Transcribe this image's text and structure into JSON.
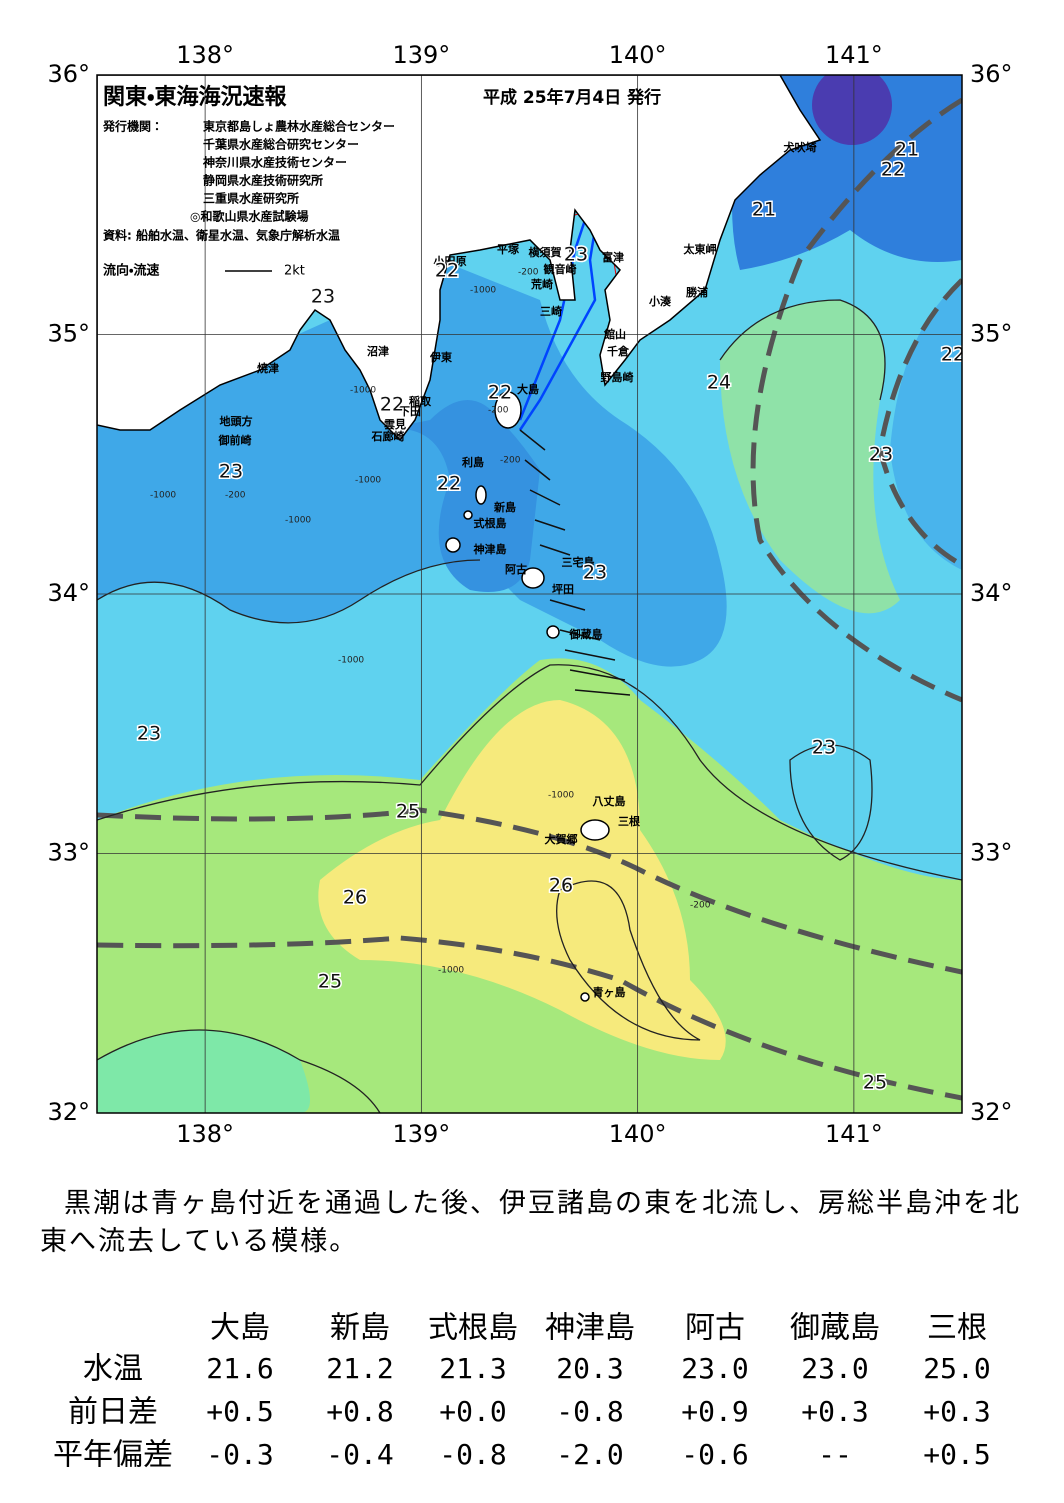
{
  "header": {
    "title": "関東・東海海況速報",
    "date": "平成 25年7月4日 発行",
    "issuer_label": "発行機関：",
    "issuers": [
      "東京都島しょ農林水産総合センター",
      "千葉県水産総合研究センター",
      "神奈川県水産技術センター",
      "静岡県水産技術研究所",
      "三重県水産研究所",
      "◎和歌山県水産試験場"
    ],
    "source": "資料: 船舶水温、衛星水温、気象庁解析水温",
    "legend_label": "流向・流速",
    "legend_scale": "2kt"
  },
  "map": {
    "lon_ticks": [
      {
        "value": 138,
        "label": "138°"
      },
      {
        "value": 139,
        "label": "139°"
      },
      {
        "value": 140,
        "label": "140°"
      },
      {
        "value": 141,
        "label": "141°"
      }
    ],
    "lat_ticks": [
      {
        "value": 32,
        "label": "32°"
      },
      {
        "value": 33,
        "label": "33°"
      },
      {
        "value": 34,
        "label": "34°"
      },
      {
        "value": 35,
        "label": "35°"
      },
      {
        "value": 36,
        "label": "36°"
      }
    ],
    "lonlim": [
      137.5,
      141.5
    ],
    "latlim": [
      32,
      36
    ],
    "places": [
      "犬吠埼",
      "太東岬",
      "勝浦",
      "小湊",
      "富津",
      "館山",
      "千倉",
      "野島崎",
      "横須賀",
      "平塚",
      "観音崎",
      "荒崎",
      "三崎",
      "小田原",
      "沼津",
      "伊東",
      "焼津",
      "稲取",
      "下田",
      "雲見",
      "石廊崎",
      "地頭方",
      "御前崎",
      "大島",
      "利島",
      "新島",
      "式根島",
      "神津島",
      "阿古",
      "三宅島",
      "坪田",
      "御蔵島",
      "八丈島",
      "三根",
      "大賀郷",
      "青ヶ島"
    ],
    "isotherm_labels": [
      23,
      22,
      22,
      22,
      22,
      23,
      23,
      23,
      24,
      21,
      21,
      22,
      23,
      22,
      23,
      25,
      26,
      26,
      25,
      25,
      23
    ],
    "depth_labels": [
      "-200",
      "-1000",
      "-1000",
      "-200",
      "-1000",
      "-200",
      "-1000",
      "-200",
      "-1000",
      "-1000",
      "-1000",
      "-200",
      "-1000"
    ]
  },
  "summary": "黒潮は青ヶ島付近を通過した後、伊豆諸島の東を北流し、房総半島沖を北東へ流去している模様。",
  "table": {
    "columns": [
      "大島",
      "新島",
      "式根島",
      "神津島",
      "阿古",
      "御蔵島",
      "三根"
    ],
    "rows": [
      {
        "label": "水温",
        "cells": [
          "21.6",
          "21.2",
          "21.3",
          "20.3",
          "23.0",
          "23.0",
          "25.0"
        ]
      },
      {
        "label": "前日差",
        "cells": [
          "+0.5",
          "+0.8",
          "+0.0",
          "-0.8",
          "+0.9",
          "+0.3",
          "+0.3"
        ]
      },
      {
        "label": "平年偏差",
        "cells": [
          "-0.3",
          "-0.4",
          "-0.8",
          "-2.0",
          "-0.6",
          "--",
          "+0.5"
        ]
      }
    ]
  }
}
